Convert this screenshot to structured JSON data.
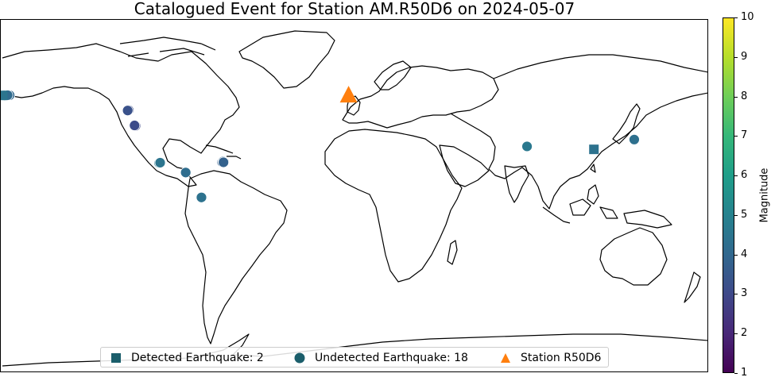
{
  "title": "Catalogued Event for Station AM.R50D6 on 2024-05-07",
  "legend": {
    "detected_label": "Detected Earthquake: 2",
    "undetected_label": "Undetected Earthquake: 18",
    "station_label": "Station R50D6"
  },
  "colorbar": {
    "label": "Magnitude",
    "min": 1,
    "max": 10,
    "ticks": [
      "1",
      "2",
      "3",
      "4",
      "5",
      "6",
      "7",
      "8",
      "9",
      "10"
    ],
    "colors": [
      "#440154",
      "#482878",
      "#3e4989",
      "#31688e",
      "#26828e",
      "#1f9e89",
      "#35b779",
      "#6ece58",
      "#b5de2b",
      "#fde725"
    ]
  },
  "colors": {
    "station": "#ff7f0e",
    "legend_marker": "#1b5e6b",
    "coastline": "#000000"
  },
  "map_data": {
    "projection": "PlateCarree",
    "station": {
      "name": "R50D6",
      "lon": -3.2,
      "lat": 51.5
    },
    "detected": [
      {
        "lon": -179.0,
        "lat": 51.5,
        "mag": 4.5
      },
      {
        "lon": 121.5,
        "lat": 24.0,
        "mag": 4.4
      }
    ],
    "undetected": [
      {
        "lon": -176.0,
        "lat": 51.7,
        "mag": 3.9
      },
      {
        "lon": -175.5,
        "lat": 51.6,
        "mag": 4.0
      },
      {
        "lon": -178.0,
        "lat": 51.5,
        "mag": 4.2
      },
      {
        "lon": -115.0,
        "lat": 44.0,
        "mag": 3.2
      },
      {
        "lon": -111.5,
        "lat": 36.0,
        "mag": 3.0
      },
      {
        "lon": -99.5,
        "lat": 17.0,
        "mag": 4.6
      },
      {
        "lon": -86.0,
        "lat": 12.2,
        "mag": 4.2
      },
      {
        "lon": -78.0,
        "lat": -0.5,
        "mag": 4.4
      },
      {
        "lon": -67.5,
        "lat": 17.5,
        "mag": 3.7
      },
      {
        "lon": -66.5,
        "lat": 17.6,
        "mag": 4.1
      },
      {
        "lon": -67.0,
        "lat": 17.8,
        "mag": 3.9
      },
      {
        "lon": 87.5,
        "lat": 25.5,
        "mag": 4.6
      },
      {
        "lon": 142.0,
        "lat": 29.0,
        "mag": 4.3
      },
      {
        "lon": -115.5,
        "lat": 43.8,
        "mag": 3.3
      },
      {
        "lon": -176.5,
        "lat": 51.6,
        "mag": 4.1
      },
      {
        "lon": -112.0,
        "lat": 36.2,
        "mag": 3.1
      },
      {
        "lon": -99.0,
        "lat": 17.2,
        "mag": 4.5
      },
      {
        "lon": -66.8,
        "lat": 17.4,
        "mag": 3.8
      }
    ]
  }
}
